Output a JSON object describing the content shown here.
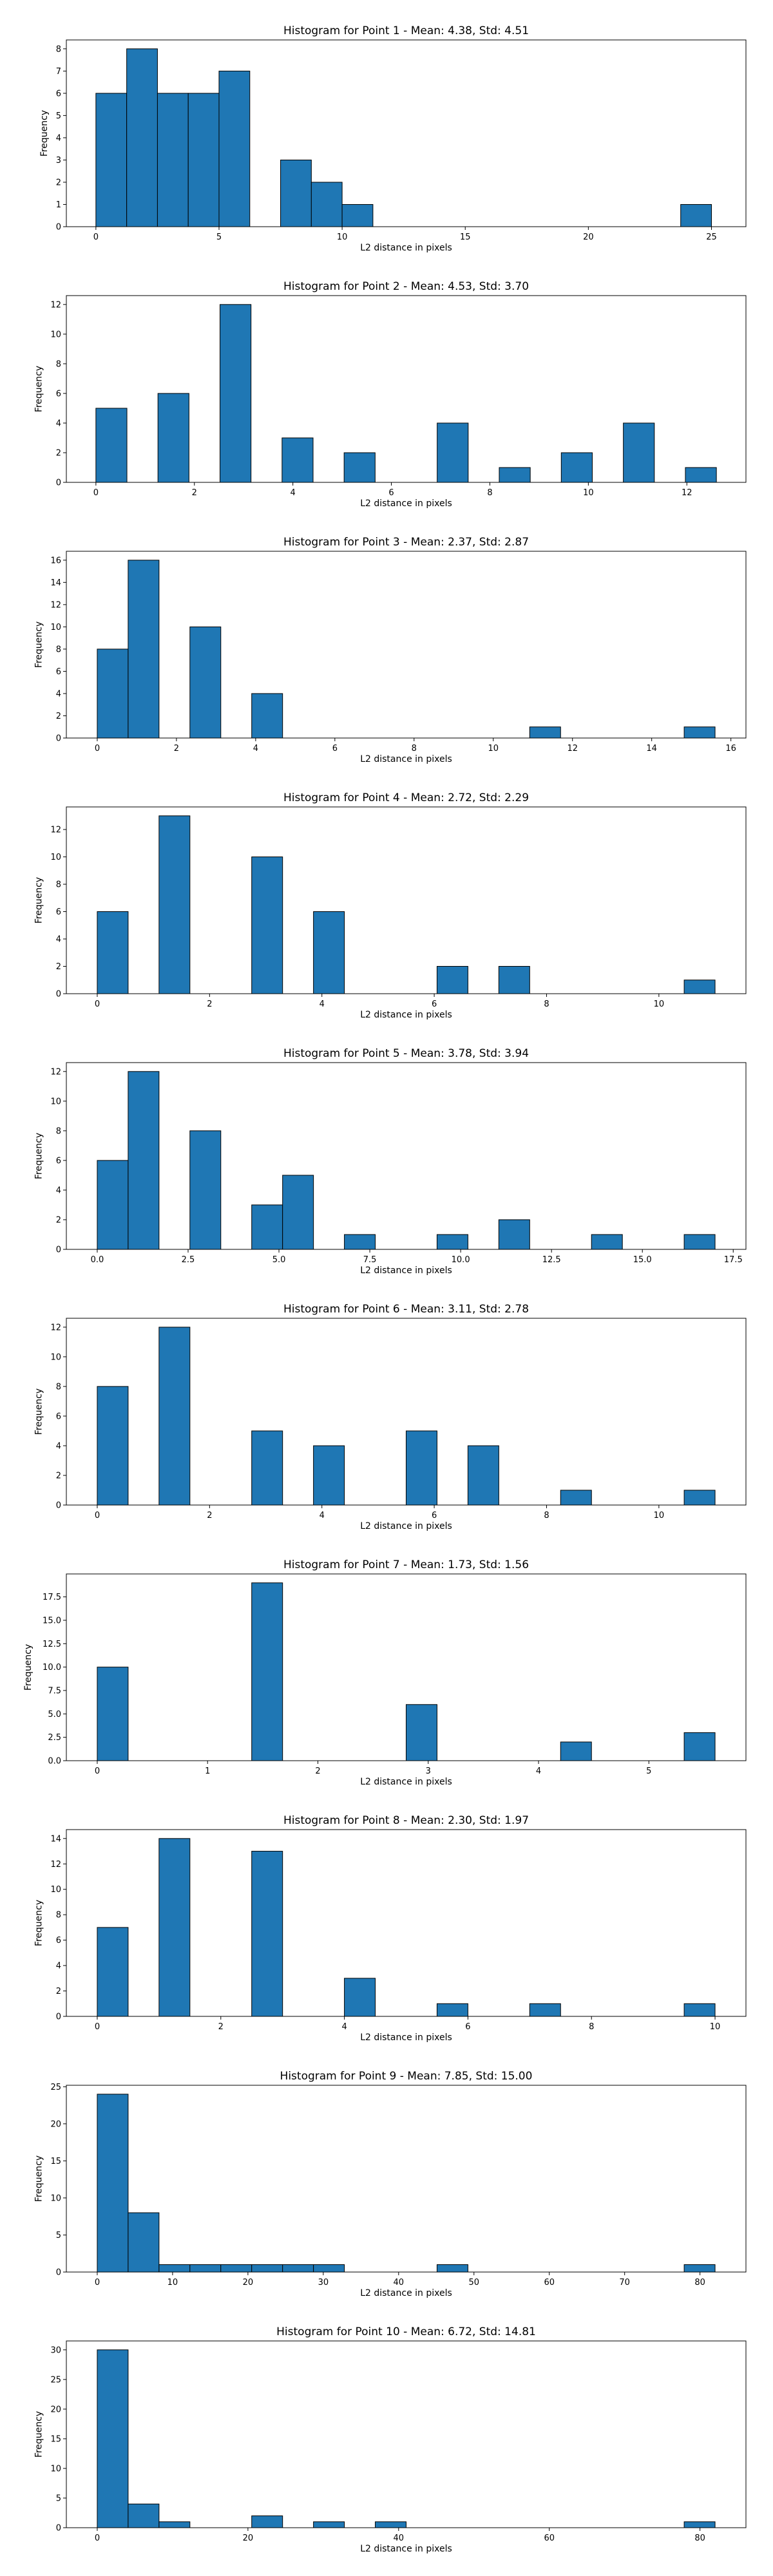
{
  "chart_data": [
    {
      "type": "bar",
      "title": "Histogram for Point 1 - Mean: 4.38, Std: 4.51",
      "xlabel": "L2 distance in pixels",
      "ylabel": "Frequency",
      "xlim": [
        -1.2,
        26.4
      ],
      "ylim": [
        0,
        8.4
      ],
      "xticks": [
        0,
        5,
        10,
        15,
        20,
        25
      ],
      "xticklabels": [
        "0",
        "5",
        "10",
        "15",
        "20",
        "25"
      ],
      "yticks": [
        0,
        1,
        2,
        3,
        4,
        5,
        6,
        7,
        8
      ],
      "yticklabels": [
        "0",
        "1",
        "2",
        "3",
        "4",
        "5",
        "6",
        "7",
        "8"
      ],
      "bin_edges": [
        0,
        1.25,
        2.5,
        3.75,
        5,
        6.25,
        7.5,
        8.75,
        10,
        11.25,
        12.5,
        13.75,
        15,
        16.25,
        17.5,
        18.75,
        20,
        21.25,
        22.5,
        23.75,
        25
      ],
      "values": [
        6,
        8,
        6,
        6,
        7,
        0,
        3,
        2,
        1,
        0,
        0,
        0,
        0,
        0,
        0,
        0,
        0,
        0,
        0,
        1
      ],
      "grid": false,
      "legend": "none"
    },
    {
      "type": "bar",
      "title": "Histogram for Point 2 - Mean: 4.53, Std: 3.70",
      "xlabel": "L2 distance in pixels",
      "ylabel": "Frequency",
      "xlim": [
        -0.6,
        13.2
      ],
      "ylim": [
        0,
        12.6
      ],
      "xticks": [
        0,
        2,
        4,
        6,
        8,
        10,
        12
      ],
      "xticklabels": [
        "0",
        "2",
        "4",
        "6",
        "8",
        "10",
        "12"
      ],
      "yticks": [
        0,
        2,
        4,
        6,
        8,
        10,
        12
      ],
      "yticklabels": [
        "0",
        "2",
        "4",
        "6",
        "8",
        "10",
        "12"
      ],
      "bin_edges": [
        0,
        0.63,
        1.26,
        1.89,
        2.52,
        3.15,
        3.78,
        4.41,
        5.04,
        5.67,
        6.3,
        6.93,
        7.56,
        8.19,
        8.82,
        9.45,
        10.08,
        10.71,
        11.34,
        11.97,
        12.6
      ],
      "values": [
        5,
        0,
        6,
        0,
        12,
        0,
        3,
        0,
        2,
        0,
        0,
        4,
        0,
        1,
        0,
        2,
        0,
        4,
        0,
        1
      ],
      "grid": false,
      "legend": "none"
    },
    {
      "type": "bar",
      "title": "Histogram for Point 3 - Mean: 2.37, Std: 2.87",
      "xlabel": "L2 distance in pixels",
      "ylabel": "Frequency",
      "xlim": [
        -0.78,
        16.38
      ],
      "ylim": [
        0,
        16.8
      ],
      "xticks": [
        0,
        2,
        4,
        6,
        8,
        10,
        12,
        14,
        16
      ],
      "xticklabels": [
        "0",
        "2",
        "4",
        "6",
        "8",
        "10",
        "12",
        "14",
        "16"
      ],
      "yticks": [
        0,
        2,
        4,
        6,
        8,
        10,
        12,
        14,
        16
      ],
      "yticklabels": [
        "0",
        "2",
        "4",
        "6",
        "8",
        "10",
        "12",
        "14",
        "16"
      ],
      "bin_edges": [
        0,
        0.78,
        1.56,
        2.34,
        3.12,
        3.9,
        4.68,
        5.46,
        6.24,
        7.02,
        7.8,
        8.58,
        9.36,
        10.14,
        10.92,
        11.7,
        12.48,
        13.26,
        14.04,
        14.82,
        15.6
      ],
      "values": [
        8,
        16,
        0,
        10,
        0,
        4,
        0,
        0,
        0,
        0,
        0,
        0,
        0,
        0,
        1,
        0,
        0,
        0,
        0,
        1
      ],
      "grid": false,
      "legend": "none"
    },
    {
      "type": "bar",
      "title": "Histogram for Point 4 - Mean: 2.72, Std: 2.29",
      "xlabel": "L2 distance in pixels",
      "ylabel": "Frequency",
      "xlim": [
        -0.55,
        11.55
      ],
      "ylim": [
        0,
        13.65
      ],
      "xticks": [
        0,
        2,
        4,
        6,
        8,
        10
      ],
      "xticklabels": [
        "0",
        "2",
        "4",
        "6",
        "8",
        "10"
      ],
      "yticks": [
        0,
        2,
        4,
        6,
        8,
        10,
        12
      ],
      "yticklabels": [
        "0",
        "2",
        "4",
        "6",
        "8",
        "10",
        "12"
      ],
      "bin_edges": [
        0,
        0.55,
        1.1,
        1.65,
        2.2,
        2.75,
        3.3,
        3.85,
        4.4,
        4.95,
        5.5,
        6.05,
        6.6,
        7.15,
        7.7,
        8.25,
        8.8,
        9.35,
        9.9,
        10.45,
        11
      ],
      "values": [
        6,
        0,
        13,
        0,
        0,
        10,
        0,
        6,
        0,
        0,
        0,
        2,
        0,
        2,
        0,
        0,
        0,
        0,
        0,
        1
      ],
      "grid": false,
      "legend": "none"
    },
    {
      "type": "bar",
      "title": "Histogram for Point 5 - Mean: 3.78, Std: 3.94",
      "xlabel": "L2 distance in pixels",
      "ylabel": "Frequency",
      "xlim": [
        -0.85,
        17.85
      ],
      "ylim": [
        0,
        12.6
      ],
      "xticks": [
        0,
        2.5,
        5,
        7.5,
        10,
        12.5,
        15,
        17.5
      ],
      "xticklabels": [
        "0.0",
        "2.5",
        "5.0",
        "7.5",
        "10.0",
        "12.5",
        "15.0",
        "17.5"
      ],
      "yticks": [
        0,
        2,
        4,
        6,
        8,
        10,
        12
      ],
      "yticklabels": [
        "0",
        "2",
        "4",
        "6",
        "8",
        "10",
        "12"
      ],
      "bin_edges": [
        0,
        0.85,
        1.7,
        2.55,
        3.4,
        4.25,
        5.1,
        5.95,
        6.8,
        7.65,
        8.5,
        9.35,
        10.2,
        11.05,
        11.9,
        12.75,
        13.6,
        14.45,
        15.3,
        16.15,
        17
      ],
      "values": [
        6,
        12,
        0,
        8,
        0,
        3,
        5,
        0,
        1,
        0,
        0,
        1,
        0,
        2,
        0,
        0,
        1,
        0,
        0,
        1
      ],
      "grid": false,
      "legend": "none"
    },
    {
      "type": "bar",
      "title": "Histogram for Point 6 - Mean: 3.11, Std: 2.78",
      "xlabel": "L2 distance in pixels",
      "ylabel": "Frequency",
      "xlim": [
        -0.55,
        11.55
      ],
      "ylim": [
        0,
        12.6
      ],
      "xticks": [
        0,
        2,
        4,
        6,
        8,
        10
      ],
      "xticklabels": [
        "0",
        "2",
        "4",
        "6",
        "8",
        "10"
      ],
      "yticks": [
        0,
        2,
        4,
        6,
        8,
        10,
        12
      ],
      "yticklabels": [
        "0",
        "2",
        "4",
        "6",
        "8",
        "10",
        "12"
      ],
      "bin_edges": [
        0,
        0.55,
        1.1,
        1.65,
        2.2,
        2.75,
        3.3,
        3.85,
        4.4,
        4.95,
        5.5,
        6.05,
        6.6,
        7.15,
        7.7,
        8.25,
        8.8,
        9.35,
        9.9,
        10.45,
        11
      ],
      "values": [
        8,
        0,
        12,
        0,
        0,
        5,
        0,
        4,
        0,
        0,
        5,
        0,
        4,
        0,
        0,
        1,
        0,
        0,
        0,
        1
      ],
      "grid": false,
      "legend": "none"
    },
    {
      "type": "bar",
      "title": "Histogram for Point 7 - Mean: 1.73, Std: 1.56",
      "xlabel": "L2 distance in pixels",
      "ylabel": "Frequency",
      "xlim": [
        -0.28,
        5.88
      ],
      "ylim": [
        0,
        19.95
      ],
      "xticks": [
        0,
        1,
        2,
        3,
        4,
        5
      ],
      "xticklabels": [
        "0",
        "1",
        "2",
        "3",
        "4",
        "5"
      ],
      "yticks": [
        0,
        2.5,
        5,
        7.5,
        10,
        12.5,
        15,
        17.5
      ],
      "yticklabels": [
        "0.0",
        "2.5",
        "5.0",
        "7.5",
        "10.0",
        "12.5",
        "15.0",
        "17.5"
      ],
      "bin_edges": [
        0,
        0.28,
        0.56,
        0.84,
        1.12,
        1.4,
        1.68,
        1.96,
        2.24,
        2.52,
        2.8,
        3.08,
        3.36,
        3.64,
        3.92,
        4.2,
        4.48,
        4.76,
        5.04,
        5.32,
        5.6
      ],
      "values": [
        10,
        0,
        0,
        0,
        0,
        19,
        0,
        0,
        0,
        0,
        6,
        0,
        0,
        0,
        0,
        2,
        0,
        0,
        0,
        3
      ],
      "grid": false,
      "legend": "none"
    },
    {
      "type": "bar",
      "title": "Histogram for Point 8 - Mean: 2.30, Std: 1.97",
      "xlabel": "L2 distance in pixels",
      "ylabel": "Frequency",
      "xlim": [
        -0.5,
        10.5
      ],
      "ylim": [
        0,
        14.7
      ],
      "xticks": [
        0,
        2,
        4,
        6,
        8,
        10
      ],
      "xticklabels": [
        "0",
        "2",
        "4",
        "6",
        "8",
        "10"
      ],
      "yticks": [
        0,
        2,
        4,
        6,
        8,
        10,
        12,
        14
      ],
      "yticklabels": [
        "0",
        "2",
        "4",
        "6",
        "8",
        "10",
        "12",
        "14"
      ],
      "bin_edges": [
        0,
        0.5,
        1,
        1.5,
        2,
        2.5,
        3,
        3.5,
        4,
        4.5,
        5,
        5.5,
        6,
        6.5,
        7,
        7.5,
        8,
        8.5,
        9,
        9.5,
        10
      ],
      "values": [
        7,
        0,
        14,
        0,
        0,
        13,
        0,
        0,
        3,
        0,
        0,
        1,
        0,
        0,
        1,
        0,
        0,
        0,
        0,
        1
      ],
      "grid": false,
      "legend": "none"
    },
    {
      "type": "bar",
      "title": "Histogram for Point 9 - Mean: 7.85, Std: 15.00",
      "xlabel": "L2 distance in pixels",
      "ylabel": "Frequency",
      "xlim": [
        -4.1,
        86.1
      ],
      "ylim": [
        0,
        25.2
      ],
      "xticks": [
        0,
        10,
        20,
        30,
        40,
        50,
        60,
        70,
        80
      ],
      "xticklabels": [
        "0",
        "10",
        "20",
        "30",
        "40",
        "50",
        "60",
        "70",
        "80"
      ],
      "yticks": [
        0,
        5,
        10,
        15,
        20,
        25
      ],
      "yticklabels": [
        "0",
        "5",
        "10",
        "15",
        "20",
        "25"
      ],
      "bin_edges": [
        0,
        4.1,
        8.2,
        12.3,
        16.4,
        20.5,
        24.6,
        28.7,
        32.8,
        36.9,
        41,
        45.1,
        49.2,
        53.3,
        57.4,
        61.5,
        65.6,
        69.7,
        73.8,
        77.9,
        82
      ],
      "values": [
        24,
        8,
        1,
        1,
        1,
        1,
        1,
        1,
        0,
        0,
        0,
        1,
        0,
        0,
        0,
        0,
        0,
        0,
        0,
        1
      ],
      "grid": false,
      "legend": "none"
    },
    {
      "type": "bar",
      "title": "Histogram for Point 10 - Mean: 6.72, Std: 14.81",
      "xlabel": "L2 distance in pixels",
      "ylabel": "Frequency",
      "xlim": [
        -4.1,
        86.1
      ],
      "ylim": [
        0,
        31.5
      ],
      "xticks": [
        0,
        20,
        40,
        60,
        80
      ],
      "xticklabels": [
        "0",
        "20",
        "40",
        "60",
        "80"
      ],
      "yticks": [
        0,
        5,
        10,
        15,
        20,
        25,
        30
      ],
      "yticklabels": [
        "0",
        "5",
        "10",
        "15",
        "20",
        "25",
        "30"
      ],
      "bin_edges": [
        0,
        4.1,
        8.2,
        12.3,
        16.4,
        20.5,
        24.6,
        28.7,
        32.8,
        36.9,
        41,
        45.1,
        49.2,
        53.3,
        57.4,
        61.5,
        65.6,
        69.7,
        73.8,
        77.9,
        82
      ],
      "values": [
        30,
        4,
        1,
        0,
        0,
        2,
        0,
        1,
        0,
        1,
        0,
        0,
        0,
        0,
        0,
        0,
        0,
        0,
        0,
        1
      ],
      "grid": false,
      "legend": "none"
    }
  ],
  "colors": {
    "bar_fill": "#1f77b4",
    "bar_edge": "#000000",
    "axes": "#000000",
    "background": "#ffffff"
  }
}
